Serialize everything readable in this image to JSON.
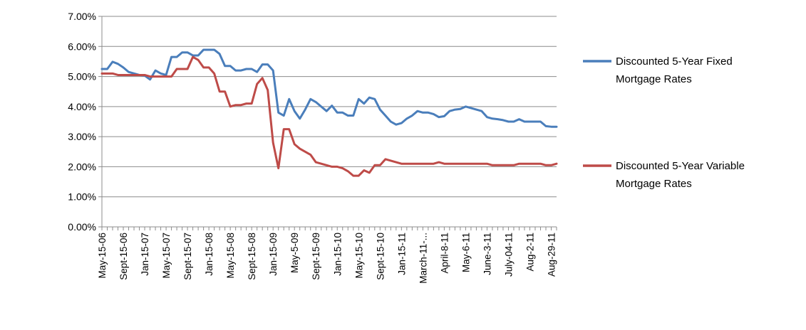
{
  "chart_data": {
    "type": "line",
    "title": "",
    "xlabel": "",
    "ylabel": "",
    "ylim": [
      0,
      0.07
    ],
    "yticks": [
      "0.00%",
      "1.00%",
      "2.00%",
      "3.00%",
      "4.00%",
      "5.00%",
      "6.00%",
      "7.00%"
    ],
    "grid": "horizontal",
    "legend_position": "right",
    "x_tick_labels": [
      {
        "index": 0,
        "label": "May-15-06"
      },
      {
        "index": 4,
        "label": "Sept-15-06"
      },
      {
        "index": 8,
        "label": "Jan-15-07"
      },
      {
        "index": 12,
        "label": "May-15-07"
      },
      {
        "index": 16,
        "label": "Sept-15-07"
      },
      {
        "index": 20,
        "label": "Jan-15-08"
      },
      {
        "index": 24,
        "label": "May-15-08"
      },
      {
        "index": 28,
        "label": "Sept-15-08"
      },
      {
        "index": 32,
        "label": "Jan-15-09"
      },
      {
        "index": 36,
        "label": "May-5-09"
      },
      {
        "index": 40,
        "label": "Sept-15-09"
      },
      {
        "index": 44,
        "label": "Jan-15-10"
      },
      {
        "index": 48,
        "label": "May-15-10"
      },
      {
        "index": 52,
        "label": "Sept-15-10"
      },
      {
        "index": 56,
        "label": "Jan-15-11"
      },
      {
        "index": 60,
        "label": "March-11-..."
      },
      {
        "index": 64,
        "label": "April-8-11"
      },
      {
        "index": 68,
        "label": "May-6-11"
      },
      {
        "index": 72,
        "label": "June-3-11"
      },
      {
        "index": 76,
        "label": "July-04-11"
      },
      {
        "index": 80,
        "label": "Aug-2-11"
      },
      {
        "index": 84,
        "label": "Aug-29-11"
      }
    ],
    "series": [
      {
        "name": "Discounted 5-Year Fixed Mortgage Rates",
        "color": "#4a7ebb",
        "values": [
          0.0525,
          0.0525,
          0.0549,
          0.0542,
          0.053,
          0.0515,
          0.051,
          0.0505,
          0.0503,
          0.049,
          0.052,
          0.051,
          0.0505,
          0.0565,
          0.0565,
          0.058,
          0.058,
          0.057,
          0.057,
          0.0589,
          0.0589,
          0.0589,
          0.0575,
          0.0535,
          0.0535,
          0.052,
          0.052,
          0.0525,
          0.0525,
          0.0515,
          0.054,
          0.054,
          0.052,
          0.038,
          0.037,
          0.0425,
          0.0385,
          0.036,
          0.039,
          0.0425,
          0.0415,
          0.04,
          0.0385,
          0.0403,
          0.038,
          0.038,
          0.037,
          0.037,
          0.0425,
          0.041,
          0.043,
          0.0425,
          0.039,
          0.037,
          0.035,
          0.034,
          0.0345,
          0.036,
          0.037,
          0.0385,
          0.038,
          0.038,
          0.0375,
          0.0365,
          0.0368,
          0.0385,
          0.039,
          0.0392,
          0.04,
          0.0395,
          0.039,
          0.0385,
          0.0365,
          0.036,
          0.0358,
          0.0355,
          0.035,
          0.035,
          0.0358,
          0.035,
          0.035,
          0.035,
          0.035,
          0.0335,
          0.0333,
          0.0333
        ]
      },
      {
        "name": "Discounted 5-Year Variable Mortgage Rates",
        "color": "#be4b48",
        "values": [
          0.051,
          0.051,
          0.051,
          0.0505,
          0.0505,
          0.0505,
          0.0505,
          0.0505,
          0.0505,
          0.05,
          0.05,
          0.05,
          0.05,
          0.05,
          0.0525,
          0.0525,
          0.0525,
          0.0565,
          0.0555,
          0.053,
          0.053,
          0.051,
          0.045,
          0.045,
          0.04,
          0.0405,
          0.0405,
          0.041,
          0.041,
          0.0475,
          0.0495,
          0.0455,
          0.028,
          0.0195,
          0.0325,
          0.0325,
          0.0275,
          0.026,
          0.025,
          0.024,
          0.0215,
          0.021,
          0.0205,
          0.02,
          0.02,
          0.0195,
          0.0185,
          0.017,
          0.017,
          0.0188,
          0.018,
          0.0205,
          0.0205,
          0.0225,
          0.022,
          0.0215,
          0.021,
          0.021,
          0.021,
          0.021,
          0.021,
          0.021,
          0.021,
          0.0215,
          0.021,
          0.021,
          0.021,
          0.021,
          0.021,
          0.021,
          0.021,
          0.021,
          0.021,
          0.0205,
          0.0205,
          0.0205,
          0.0205,
          0.0205,
          0.021,
          0.021,
          0.021,
          0.021,
          0.021,
          0.0205,
          0.0205,
          0.021
        ]
      }
    ],
    "legend": [
      {
        "line1": "Discounted 5-Year Fixed",
        "line2": "Mortgage Rates",
        "color": "#4a7ebb"
      },
      {
        "line1": "Discounted 5-Year Variable",
        "line2": "Mortgage Rates",
        "color": "#be4b48"
      }
    ]
  }
}
